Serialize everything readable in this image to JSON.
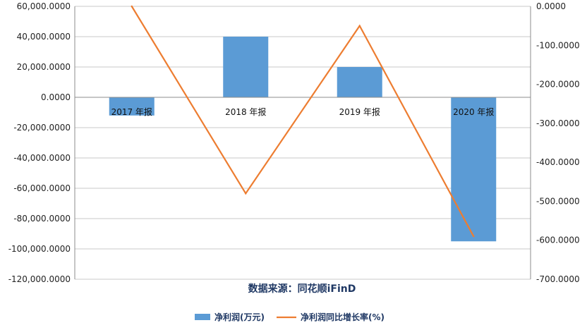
{
  "chart_data": {
    "type": "bar+line",
    "categories": [
      "2017 年报",
      "2018 年报",
      "2019 年报",
      "2020 年报"
    ],
    "series": [
      {
        "name": "净利润(万元)",
        "type": "bar",
        "axis": "left",
        "color": "#5b9bd5",
        "values": [
          -12000,
          40000,
          20000,
          -95000
        ]
      },
      {
        "name": "净利润同比增长率(%)",
        "type": "line",
        "axis": "right",
        "color": "#ed7d31",
        "values": [
          0,
          -480,
          -50,
          -590
        ]
      }
    ],
    "y_left": {
      "min": -120000,
      "max": 60000,
      "ticks": [
        "60,000.0000",
        "40,000.0000",
        "20,000.0000",
        "0.0000",
        "-20,000.0000",
        "-40,000.0000",
        "-60,000.0000",
        "-80,000.0000",
        "-100,000.0000",
        "-120,000.0000"
      ]
    },
    "y_right": {
      "min": -700,
      "max": 0,
      "ticks": [
        "0.0000",
        "-100.0000",
        "-200.0000",
        "-300.0000",
        "-400.0000",
        "-500.0000",
        "-600.0000",
        "-700.0000"
      ]
    },
    "grid": true,
    "legend_position": "bottom"
  },
  "source_text": "数据来源：同花顺iFinD"
}
